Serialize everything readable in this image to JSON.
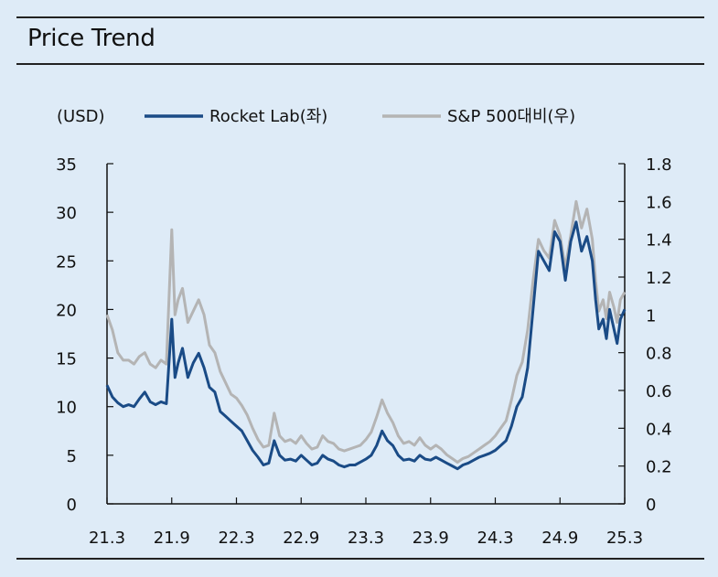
{
  "title": "Price Trend",
  "unit_label": "(USD)",
  "colors": {
    "rocket": "#1a4b86",
    "sp": "#b4b4b4",
    "background": "#deebf7"
  },
  "chart_data": {
    "type": "line",
    "x_tick_labels": [
      "21.3",
      "21.9",
      "22.3",
      "22.9",
      "23.3",
      "23.9",
      "24.3",
      "24.9",
      "25.3"
    ],
    "x_index_range": [
      0,
      48
    ],
    "left_axis": {
      "ylim": [
        0,
        35
      ],
      "ticks": [
        "0",
        "5",
        "10",
        "15",
        "20",
        "25",
        "30",
        "35"
      ],
      "label": "(USD)"
    },
    "right_axis": {
      "ylim": [
        0,
        1.8
      ],
      "ticks": [
        "0",
        "0.2",
        "0.4",
        "0.6",
        "0.8",
        "1",
        "1.2",
        "1.4",
        "1.6",
        "1.8"
      ]
    },
    "legend": {
      "placement": "top"
    },
    "series": [
      {
        "name": "Rocket Lab(좌)",
        "axis": "left",
        "color": "#1a4b86",
        "x": [
          0,
          0.5,
          1,
          1.5,
          2,
          2.5,
          3,
          3.5,
          4,
          4.5,
          5,
          5.5,
          6,
          6.3,
          6.6,
          7,
          7.5,
          8,
          8.5,
          9,
          9.5,
          10,
          10.5,
          11,
          11.5,
          12,
          12.5,
          13,
          13.5,
          14,
          14.5,
          15,
          15.5,
          16,
          16.5,
          17,
          17.5,
          18,
          18.5,
          19,
          19.5,
          20,
          20.5,
          21,
          21.5,
          22,
          22.5,
          23,
          23.5,
          24,
          24.5,
          25,
          25.5,
          26,
          26.5,
          27,
          27.5,
          28,
          28.5,
          29,
          29.5,
          30,
          30.5,
          31,
          31.5,
          32,
          32.5,
          33,
          33.5,
          34,
          34.5,
          35,
          35.5,
          36,
          36.5,
          37,
          37.5,
          38,
          38.5,
          39,
          39.5,
          40,
          40.5,
          41,
          41.5,
          42,
          42.5,
          43,
          43.5,
          44,
          44.5,
          45,
          45.3,
          45.6,
          46,
          46.3,
          46.6,
          47,
          47.3,
          47.6,
          48
        ],
        "values": [
          12.2,
          11.0,
          10.4,
          10.0,
          10.2,
          10.0,
          10.8,
          11.5,
          10.5,
          10.2,
          10.5,
          10.3,
          19.0,
          13.0,
          14.5,
          16.0,
          13.0,
          14.5,
          15.5,
          14.0,
          12.0,
          11.5,
          9.5,
          9.0,
          8.5,
          8.0,
          7.5,
          6.5,
          5.5,
          4.8,
          4.0,
          4.2,
          6.5,
          5.0,
          4.5,
          4.6,
          4.4,
          5.0,
          4.5,
          4.0,
          4.2,
          5.0,
          4.6,
          4.4,
          4.0,
          3.8,
          4.0,
          4.0,
          4.3,
          4.6,
          5.0,
          6.0,
          7.5,
          6.5,
          6.0,
          5.0,
          4.5,
          4.6,
          4.4,
          5.0,
          4.6,
          4.5,
          4.8,
          4.5,
          4.2,
          3.9,
          3.6,
          4.0,
          4.2,
          4.5,
          4.8,
          5.0,
          5.2,
          5.5,
          6.0,
          6.5,
          8.0,
          10.0,
          11.0,
          14.0,
          20.0,
          26.0,
          25.0,
          24.0,
          28.0,
          27.0,
          23.0,
          27.0,
          29.0,
          26.0,
          27.5,
          25.0,
          21.0,
          18.0,
          19.0,
          17.0,
          20.0,
          18.0,
          16.5,
          19.0,
          20.0
        ]
      },
      {
        "name": "S&P 500대비(우)",
        "axis": "right",
        "color": "#b4b4b4",
        "x": [
          0,
          0.5,
          1,
          1.5,
          2,
          2.5,
          3,
          3.5,
          4,
          4.5,
          5,
          5.5,
          6,
          6.3,
          6.6,
          7,
          7.5,
          8,
          8.5,
          9,
          9.5,
          10,
          10.5,
          11,
          11.5,
          12,
          12.5,
          13,
          13.5,
          14,
          14.5,
          15,
          15.5,
          16,
          16.5,
          17,
          17.5,
          18,
          18.5,
          19,
          19.5,
          20,
          20.5,
          21,
          21.5,
          22,
          22.5,
          23,
          23.5,
          24,
          24.5,
          25,
          25.5,
          26,
          26.5,
          27,
          27.5,
          28,
          28.5,
          29,
          29.5,
          30,
          30.5,
          31,
          31.5,
          32,
          32.5,
          33,
          33.5,
          34,
          34.5,
          35,
          35.5,
          36,
          36.5,
          37,
          37.5,
          38,
          38.5,
          39,
          39.5,
          40,
          40.5,
          41,
          41.5,
          42,
          42.5,
          43,
          43.5,
          44,
          44.5,
          45,
          45.3,
          45.6,
          46,
          46.3,
          46.6,
          47,
          47.3,
          47.6,
          48
        ],
        "values": [
          1.0,
          0.92,
          0.8,
          0.76,
          0.76,
          0.74,
          0.78,
          0.8,
          0.74,
          0.72,
          0.76,
          0.74,
          1.45,
          1.0,
          1.08,
          1.14,
          0.96,
          1.02,
          1.08,
          1.0,
          0.84,
          0.8,
          0.7,
          0.64,
          0.58,
          0.56,
          0.52,
          0.47,
          0.4,
          0.34,
          0.3,
          0.31,
          0.48,
          0.36,
          0.33,
          0.34,
          0.32,
          0.36,
          0.32,
          0.29,
          0.3,
          0.36,
          0.33,
          0.32,
          0.29,
          0.28,
          0.29,
          0.3,
          0.31,
          0.34,
          0.38,
          0.46,
          0.55,
          0.48,
          0.43,
          0.36,
          0.32,
          0.33,
          0.31,
          0.35,
          0.31,
          0.29,
          0.31,
          0.29,
          0.26,
          0.24,
          0.22,
          0.24,
          0.25,
          0.27,
          0.29,
          0.31,
          0.33,
          0.36,
          0.4,
          0.44,
          0.55,
          0.68,
          0.75,
          0.92,
          1.18,
          1.4,
          1.34,
          1.3,
          1.5,
          1.42,
          1.25,
          1.42,
          1.6,
          1.46,
          1.56,
          1.4,
          1.18,
          1.02,
          1.08,
          0.98,
          1.12,
          1.04,
          0.96,
          1.08,
          1.12
        ]
      }
    ]
  }
}
